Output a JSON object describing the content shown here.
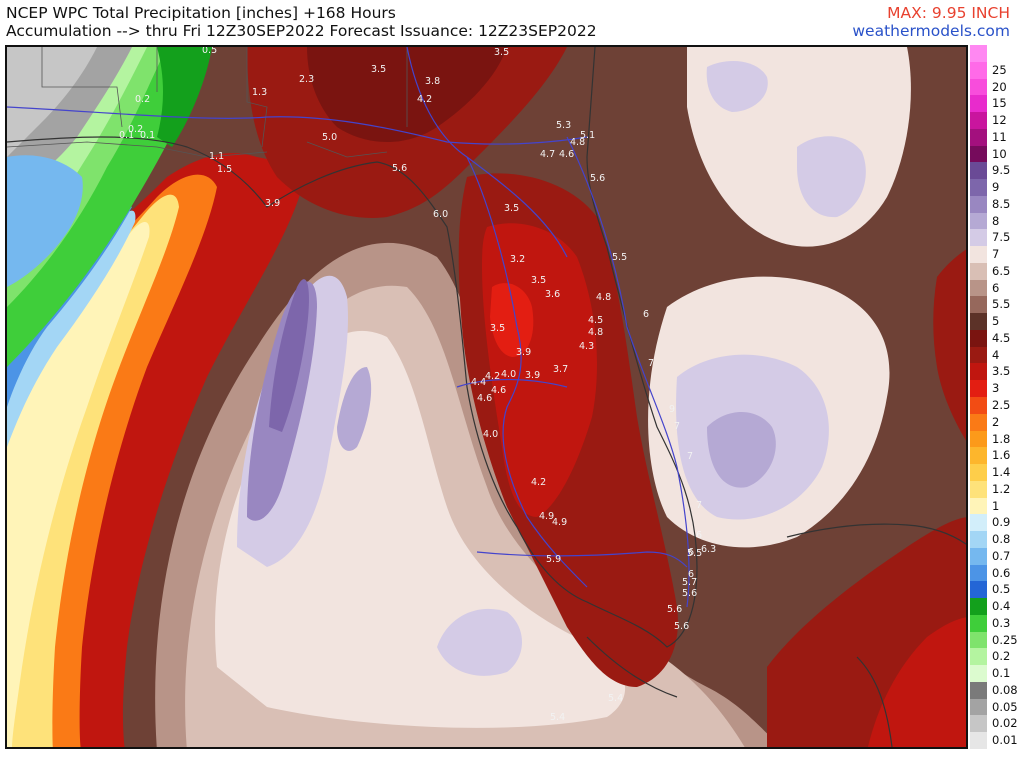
{
  "header": {
    "title_line1": "NCEP WPC Total Precipitation [inches] +168 Hours",
    "title_line2": "Accumulation --> thru Fri 12Z30SEP2022   Forecast Issuance: 12Z23SEP2022",
    "max_label": "MAX: 9.95 INCH",
    "site": "weathermodels.com"
  },
  "colors": {
    "max_label": "#e8412f",
    "site": "#2a52c9"
  },
  "legend": [
    {
      "label": "",
      "color": "#ff88f2"
    },
    {
      "label": "25",
      "color": "#ff6ae8"
    },
    {
      "label": "20",
      "color": "#f84ddc"
    },
    {
      "label": "15",
      "color": "#e82bcc"
    },
    {
      "label": "12",
      "color": "#c9159e"
    },
    {
      "label": "11",
      "color": "#a3107e"
    },
    {
      "label": "10",
      "color": "#760b5c"
    },
    {
      "label": "9.5",
      "color": "#6a4a96"
    },
    {
      "label": "9",
      "color": "#7d66ab"
    },
    {
      "label": "8.5",
      "color": "#9987c1"
    },
    {
      "label": "8",
      "color": "#b5a9d4"
    },
    {
      "label": "7.5",
      "color": "#d4cbe6"
    },
    {
      "label": "7",
      "color": "#f2e4df"
    },
    {
      "label": "6.5",
      "color": "#d9bfb5"
    },
    {
      "label": "6",
      "color": "#b89488"
    },
    {
      "label": "5.5",
      "color": "#96685c"
    },
    {
      "label": "5",
      "color": "#5c3228"
    },
    {
      "label": "4.5",
      "color": "#7a1410"
    },
    {
      "label": "4",
      "color": "#9a1a12"
    },
    {
      "label": "3.5",
      "color": "#c0160f"
    },
    {
      "label": "3",
      "color": "#e31e12"
    },
    {
      "label": "2.5",
      "color": "#f24c14"
    },
    {
      "label": "2",
      "color": "#fa7a16"
    },
    {
      "label": "1.8",
      "color": "#fc9a1a"
    },
    {
      "label": "1.6",
      "color": "#fdb62c"
    },
    {
      "label": "1.4",
      "color": "#fece4a"
    },
    {
      "label": "1.2",
      "color": "#fee27a"
    },
    {
      "label": "1",
      "color": "#fff4b8"
    },
    {
      "label": "0.9",
      "color": "#d2eefa"
    },
    {
      "label": "0.8",
      "color": "#a3d6f5"
    },
    {
      "label": "0.7",
      "color": "#75b8ef"
    },
    {
      "label": "0.6",
      "color": "#4c94e6"
    },
    {
      "label": "0.5",
      "color": "#2466d6"
    },
    {
      "label": "0.4",
      "color": "#13a01c"
    },
    {
      "label": "0.3",
      "color": "#3fce3a"
    },
    {
      "label": "0.25",
      "color": "#7fe36c"
    },
    {
      "label": "0.2",
      "color": "#b4f4a0"
    },
    {
      "label": "0.1",
      "color": "#dcfbcf"
    },
    {
      "label": "0.08",
      "color": "#7a7a7a"
    },
    {
      "label": "0.05",
      "color": "#a3a3a3"
    },
    {
      "label": "0.02",
      "color": "#c6c6c6"
    },
    {
      "label": "0.01",
      "color": "#e6e6e6"
    }
  ],
  "point_labels": [
    "0.5",
    "3.5",
    "3.5",
    "3.8",
    "4.2",
    "2.3",
    "1.3",
    "0.2",
    "0.2",
    "0.1",
    "0.1",
    "1.1",
    "1.5",
    "3.9",
    "5.0",
    "5.6",
    "6.0",
    "3.5",
    "5.3",
    "5.1",
    "4.8",
    "4.7",
    "4.6",
    "5.6",
    "3.2",
    "3.5",
    "3.6",
    "5.5",
    "4.8",
    "4.5",
    "4.8",
    "3.5",
    "4.3",
    "6",
    "3.9",
    "3.7",
    "7",
    "4.4",
    "4.2",
    "4.0",
    "3.9",
    "4.6",
    "4.6",
    "4.0",
    "9",
    "7",
    "7",
    "4.2",
    "4.9",
    "4.9",
    "7",
    "6",
    "6",
    "6.3",
    "5.5",
    "5.9",
    "6",
    "5.7",
    "5.6",
    "5.6",
    "5.6",
    "5.4",
    "5.4"
  ]
}
